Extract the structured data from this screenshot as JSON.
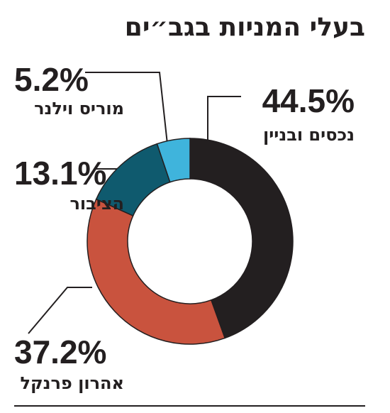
{
  "chart_data": {
    "type": "donut",
    "title": "בעלי המניות בגב״ים",
    "categories": [
      "נכסים ובניין",
      "אהרון פרנקל",
      "הציבור",
      "מוריס וילנר"
    ],
    "values": [
      44.5,
      37.2,
      13.1,
      5.2
    ],
    "value_labels": [
      "44.5%",
      "37.2%",
      "13.1%",
      "5.2%"
    ],
    "colors": [
      "#231f20",
      "#c9533e",
      "#0f5a6e",
      "#3fb4dc"
    ]
  }
}
